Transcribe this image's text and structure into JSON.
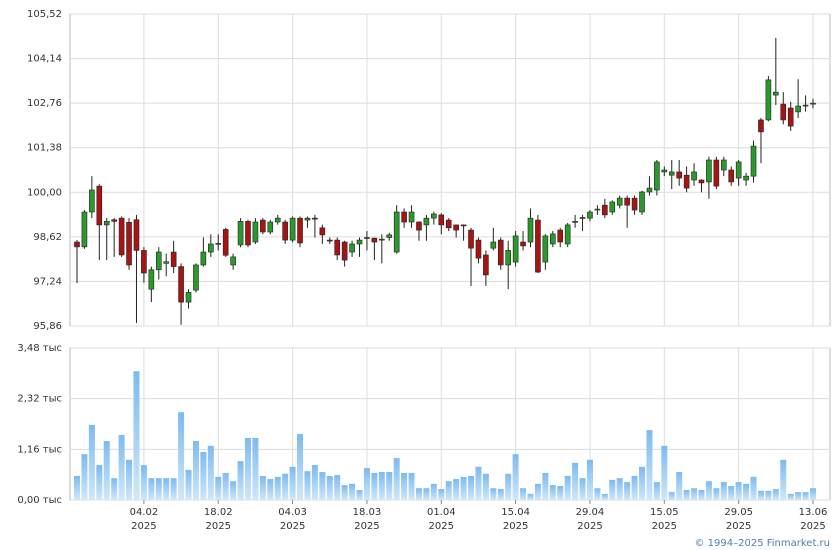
{
  "chart_data": {
    "type": "candlestick",
    "up_color": "#2a9a2a",
    "down_color": "#a81414",
    "volume_color": "#8cc4ef",
    "grid": true,
    "source": "© 1994–2025 Finmarket.ru",
    "x": [
      "22.01.2025",
      "23.01.2025",
      "24.01.2025",
      "27.01.2025",
      "28.01.2025",
      "29.01.2025",
      "30.01.2025",
      "31.01.2025",
      "03.02.2025",
      "04.02.2025",
      "05.02.2025",
      "06.02.2025",
      "07.02.2025",
      "10.02.2025",
      "11.02.2025",
      "12.02.2025",
      "13.02.2025",
      "14.02.2025",
      "17.02.2025",
      "18.02.2025",
      "19.02.2025",
      "20.02.2025",
      "21.02.2025",
      "24.02.2025",
      "25.02.2025",
      "26.02.2025",
      "27.02.2025",
      "28.02.2025",
      "03.03.2025",
      "04.03.2025",
      "05.03.2025",
      "06.03.2025",
      "07.03.2025",
      "10.03.2025",
      "11.03.2025",
      "12.03.2025",
      "13.03.2025",
      "14.03.2025",
      "17.03.2025",
      "18.03.2025",
      "19.03.2025",
      "20.03.2025",
      "21.03.2025",
      "24.03.2025",
      "25.03.2025",
      "26.03.2025",
      "27.03.2025",
      "28.03.2025",
      "31.03.2025",
      "01.04.2025",
      "02.04.2025",
      "03.04.2025",
      "04.04.2025",
      "07.04.2025",
      "08.04.2025",
      "09.04.2025",
      "10.04.2025",
      "11.04.2025",
      "14.04.2025",
      "15.04.2025",
      "16.04.2025",
      "17.04.2025",
      "18.04.2025",
      "21.04.2025",
      "22.04.2025",
      "23.04.2025",
      "24.04.2025",
      "25.04.2025",
      "28.04.2025",
      "29.04.2025",
      "30.04.2025",
      "02.05.2025",
      "05.05.2025",
      "06.05.2025",
      "07.05.2025",
      "08.05.2025",
      "12.05.2025",
      "13.05.2025",
      "14.05.2025",
      "15.05.2025",
      "16.05.2025",
      "19.05.2025",
      "20.05.2025",
      "21.05.2025",
      "22.05.2025",
      "23.05.2025",
      "26.05.2025",
      "27.05.2025",
      "28.05.2025",
      "29.05.2025",
      "30.05.2025",
      "02.06.2025",
      "03.06.2025",
      "04.06.2025",
      "05.06.2025",
      "06.06.2025",
      "09.06.2025",
      "10.06.2025",
      "11.06.2025",
      "13.06.2025"
    ],
    "open": [
      98.46,
      98.31,
      99.39,
      100.19,
      98.99,
      99.15,
      99.2,
      99.07,
      99.15,
      98.2,
      97.0,
      97.6,
      97.8,
      98.15,
      97.7,
      96.6,
      96.97,
      97.75,
      98.15,
      98.4,
      98.85,
      97.75,
      98.37,
      99.1,
      98.46,
      99.14,
      98.77,
      99.08,
      99.08,
      98.52,
      99.2,
      99.14,
      99.2,
      98.9,
      98.52,
      98.52,
      98.46,
      98.15,
      98.4,
      98.58,
      98.58,
      98.52,
      98.6,
      98.15,
      99.39,
      99.08,
      99.08,
      98.99,
      99.2,
      99.3,
      99.14,
      98.99,
      98.99,
      98.83,
      98.52,
      98.06,
      98.27,
      98.52,
      97.75,
      97.84,
      98.46,
      98.46,
      99.14,
      97.84,
      98.4,
      98.83,
      98.4,
      99.08,
      99.2,
      99.2,
      99.45,
      99.6,
      99.39,
      99.6,
      99.82,
      99.82,
      99.39,
      100.01,
      100.07,
      100.63,
      100.53,
      100.63,
      100.53,
      100.38,
      100.38,
      100.32,
      101.0,
      100.69,
      100.69,
      100.44,
      100.38,
      100.5,
      102.24,
      102.24,
      103.01,
      102.73,
      102.61,
      102.49,
      102.67,
      102.73
    ],
    "high": [
      98.52,
      99.45,
      100.5,
      100.25,
      99.2,
      99.2,
      99.25,
      99.2,
      99.3,
      98.3,
      97.7,
      98.3,
      98.1,
      98.5,
      97.8,
      97.0,
      97.8,
      98.6,
      98.7,
      98.7,
      98.9,
      98.1,
      99.2,
      99.15,
      99.2,
      99.2,
      99.15,
      99.3,
      99.15,
      99.25,
      99.25,
      99.25,
      99.3,
      99.0,
      98.6,
      98.6,
      98.5,
      98.5,
      98.6,
      98.8,
      98.6,
      98.7,
      98.75,
      99.6,
      99.5,
      99.6,
      99.1,
      99.3,
      99.4,
      99.35,
      99.2,
      99.0,
      99.0,
      98.9,
      98.6,
      98.2,
      98.9,
      98.6,
      98.5,
      98.8,
      98.8,
      99.5,
      99.3,
      98.7,
      98.8,
      98.9,
      99.05,
      99.3,
      99.3,
      99.45,
      99.6,
      99.8,
      99.75,
      99.9,
      99.9,
      99.9,
      100.05,
      100.5,
      101.0,
      100.8,
      101.0,
      101.0,
      100.8,
      100.9,
      100.4,
      101.1,
      101.1,
      101.1,
      100.8,
      101.0,
      100.6,
      101.6,
      102.3,
      103.6,
      104.78,
      103.1,
      102.8,
      103.5,
      103.0,
      102.9
    ],
    "low": [
      97.19,
      98.25,
      99.2,
      97.9,
      97.9,
      98.0,
      98.0,
      97.6,
      95.95,
      97.2,
      96.6,
      97.3,
      97.4,
      97.5,
      95.9,
      96.4,
      96.9,
      97.7,
      98.0,
      98.2,
      98.0,
      97.6,
      98.3,
      98.3,
      98.4,
      98.7,
      98.7,
      99.0,
      98.4,
      98.45,
      98.3,
      98.9,
      98.6,
      98.4,
      98.4,
      97.9,
      97.7,
      98.0,
      98.0,
      98.2,
      97.9,
      97.8,
      98.5,
      98.1,
      98.9,
      98.9,
      98.5,
      98.5,
      99.0,
      98.7,
      98.8,
      98.6,
      98.5,
      97.1,
      97.8,
      97.1,
      98.2,
      97.6,
      97.0,
      97.7,
      98.2,
      98.3,
      97.5,
      97.6,
      98.3,
      98.3,
      98.3,
      98.9,
      98.8,
      99.1,
      99.3,
      99.2,
      99.3,
      99.5,
      98.9,
      99.3,
      99.3,
      99.9,
      99.9,
      100.5,
      100.1,
      100.2,
      100.0,
      100.2,
      100.0,
      99.8,
      100.1,
      100.5,
      100.2,
      100.2,
      100.2,
      100.3,
      100.9,
      102.2,
      102.7,
      102.1,
      101.9,
      102.3,
      102.5,
      102.6
    ],
    "close": [
      98.31,
      99.39,
      100.07,
      98.99,
      99.1,
      99.1,
      98.06,
      97.75,
      98.2,
      97.5,
      97.6,
      98.15,
      97.85,
      97.7,
      96.6,
      96.9,
      97.75,
      98.15,
      98.4,
      98.42,
      98.05,
      98.0,
      99.1,
      98.37,
      99.08,
      98.77,
      99.08,
      99.2,
      98.52,
      99.2,
      98.43,
      99.2,
      99.18,
      98.68,
      98.5,
      98.06,
      97.9,
      98.4,
      98.52,
      98.6,
      98.46,
      98.55,
      98.68,
      99.39,
      99.08,
      99.39,
      98.83,
      99.2,
      99.33,
      98.99,
      98.9,
      98.83,
      98.96,
      98.27,
      97.96,
      97.44,
      98.46,
      97.75,
      98.2,
      98.65,
      98.34,
      99.2,
      97.53,
      98.65,
      98.71,
      98.46,
      98.99,
      99.1,
      99.22,
      99.39,
      99.48,
      99.3,
      99.7,
      99.82,
      99.6,
      99.45,
      100.01,
      100.13,
      100.94,
      100.69,
      100.63,
      100.44,
      100.13,
      100.63,
      100.29,
      101.0,
      100.19,
      101.0,
      100.32,
      100.94,
      100.5,
      101.43,
      101.87,
      103.48,
      103.1,
      102.24,
      102.05,
      102.67,
      102.7,
      102.76
    ],
    "volume": [
      0.55,
      1.05,
      1.72,
      0.8,
      1.35,
      0.5,
      1.49,
      0.92,
      2.95,
      0.8,
      0.5,
      0.5,
      0.5,
      0.5,
      2.01,
      0.69,
      1.35,
      1.1,
      1.24,
      0.53,
      0.62,
      0.43,
      0.89,
      1.42,
      1.42,
      0.55,
      0.48,
      0.53,
      0.6,
      0.76,
      1.51,
      0.66,
      0.8,
      0.64,
      0.55,
      0.57,
      0.34,
      0.37,
      0.23,
      0.73,
      0.62,
      0.64,
      0.64,
      0.96,
      0.62,
      0.62,
      0.27,
      0.27,
      0.37,
      0.25,
      0.43,
      0.48,
      0.53,
      0.55,
      0.76,
      0.6,
      0.27,
      0.25,
      0.6,
      1.05,
      0.27,
      0.14,
      0.37,
      0.62,
      0.34,
      0.32,
      0.55,
      0.85,
      0.5,
      0.92,
      0.27,
      0.14,
      0.46,
      0.5,
      0.41,
      0.55,
      0.76,
      1.6,
      0.41,
      1.24,
      0.18,
      0.64,
      0.23,
      0.27,
      0.23,
      0.43,
      0.27,
      0.41,
      0.32,
      0.41,
      0.37,
      0.53,
      0.21,
      0.21,
      0.25,
      0.92,
      0.14,
      0.18,
      0.18,
      0.27
    ],
    "ylim": [
      95.86,
      105.52
    ],
    "yticks": [
      {
        "value": 95.86,
        "label": "95,86"
      },
      {
        "value": 97.24,
        "label": "97,24"
      },
      {
        "value": 98.62,
        "label": "98,62"
      },
      {
        "value": 100.0,
        "label": "100,00"
      },
      {
        "value": 101.38,
        "label": "101,38"
      },
      {
        "value": 102.76,
        "label": "102,76"
      },
      {
        "value": 104.14,
        "label": "104,14"
      },
      {
        "value": 105.52,
        "label": "105,52"
      }
    ],
    "volume_ylim": [
      0,
      3.48
    ],
    "volume_yticks": [
      {
        "value": 0,
        "label": "0,00 тыс"
      },
      {
        "value": 1.16,
        "label": "1,16 тыс"
      },
      {
        "value": 2.32,
        "label": "2,32 тыс"
      },
      {
        "value": 3.48,
        "label": "3,48 тыс"
      }
    ],
    "xticks": [
      {
        "value": "04.02.2025",
        "label": [
          "04.02",
          "2025"
        ]
      },
      {
        "value": "18.02.2025",
        "label": [
          "18.02",
          "2025"
        ]
      },
      {
        "value": "04.03.2025",
        "label": [
          "04.03",
          "2025"
        ]
      },
      {
        "value": "18.03.2025",
        "label": [
          "18.03",
          "2025"
        ]
      },
      {
        "value": "01.04.2025",
        "label": [
          "01.04",
          "2025"
        ]
      },
      {
        "value": "15.04.2025",
        "label": [
          "15.04",
          "2025"
        ]
      },
      {
        "value": "29.04.2025",
        "label": [
          "29.04",
          "2025"
        ]
      },
      {
        "value": "15.05.2025",
        "label": [
          "15.05",
          "2025"
        ]
      },
      {
        "value": "29.05.2025",
        "label": [
          "29.05",
          "2025"
        ]
      },
      {
        "value": "13.06.2025",
        "label": [
          "13.06",
          "2025"
        ]
      }
    ]
  }
}
